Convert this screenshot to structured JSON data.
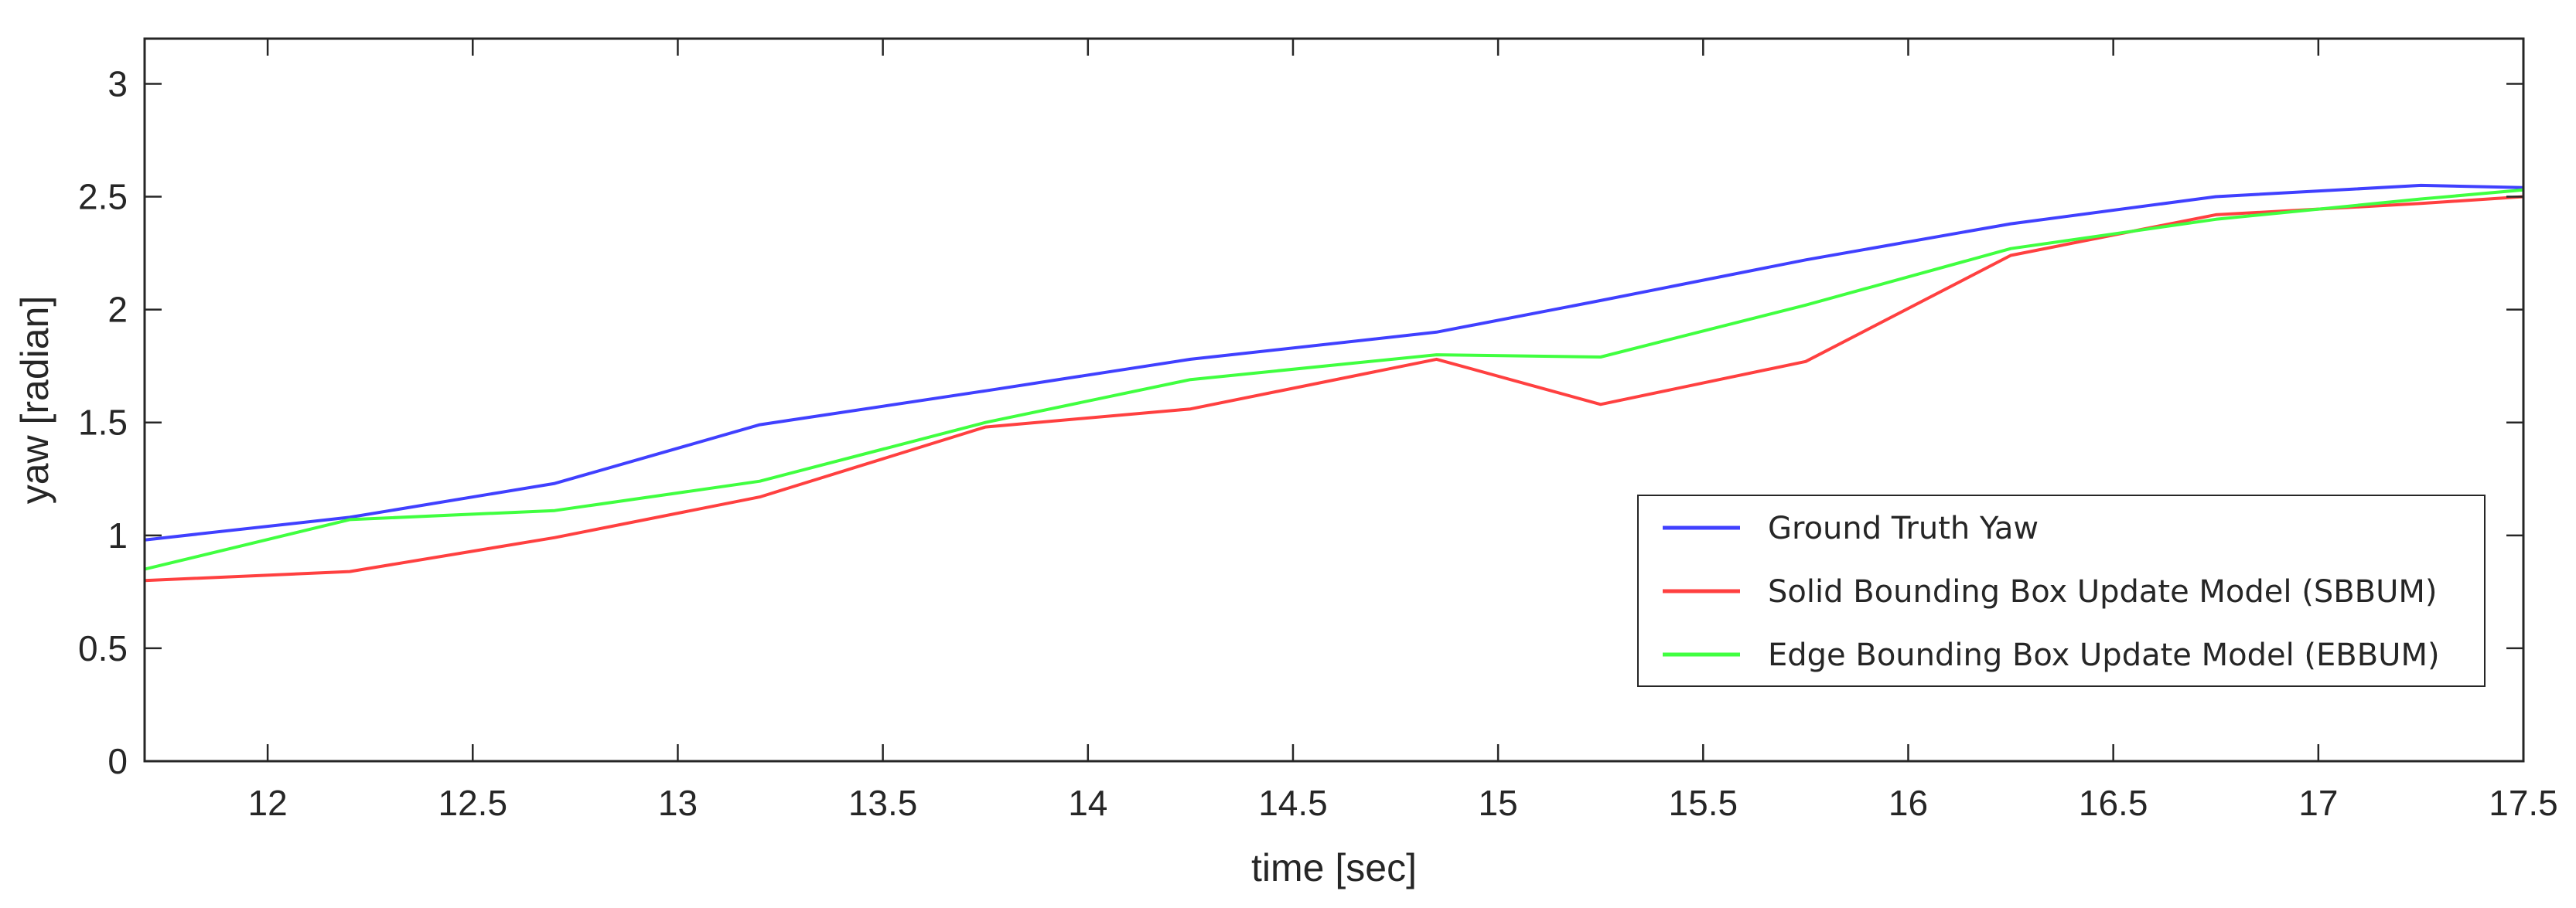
{
  "chart_data": {
    "type": "line",
    "xlabel": "time [sec]",
    "ylabel": "yaw [radian]",
    "xlim": [
      11.7,
      17.5
    ],
    "ylim": [
      0,
      3.2
    ],
    "xticks": [
      12,
      12.5,
      13,
      13.5,
      14,
      14.5,
      15,
      15.5,
      16,
      16.5,
      17,
      17.5
    ],
    "xtick_labels": [
      "12",
      "12.5",
      "13",
      "13.5",
      "14",
      "14.5",
      "15",
      "15.5",
      "16",
      "16.5",
      "17",
      "17.5"
    ],
    "yticks": [
      0,
      0.5,
      1,
      1.5,
      2,
      2.5,
      3
    ],
    "ytick_labels": [
      "0",
      "0.5",
      "1",
      "1.5",
      "2",
      "2.5",
      "3"
    ],
    "grid": false,
    "legend_position": "bottom-right",
    "series": [
      {
        "name": "Ground Truth Yaw",
        "color": "#4040ff",
        "x": [
          11.7,
          12.2,
          12.7,
          13.2,
          13.75,
          14.25,
          14.85,
          15.25,
          15.75,
          16.25,
          16.75,
          17.25,
          17.5
        ],
        "y": [
          0.98,
          1.08,
          1.23,
          1.49,
          1.64,
          1.78,
          1.9,
          2.04,
          2.22,
          2.38,
          2.5,
          2.55,
          2.54
        ]
      },
      {
        "name": "Solid Bounding Box Update Model (SBBUM)",
        "color": "#ff4040",
        "x": [
          11.7,
          12.2,
          12.7,
          13.2,
          13.75,
          14.25,
          14.85,
          15.25,
          15.75,
          16.25,
          16.75,
          17.25,
          17.5
        ],
        "y": [
          0.8,
          0.84,
          0.99,
          1.17,
          1.48,
          1.56,
          1.78,
          1.58,
          1.77,
          2.24,
          2.42,
          2.47,
          2.5
        ]
      },
      {
        "name": "Edge Bounding Box Update Model (EBBUM)",
        "color": "#40ff40",
        "x": [
          11.7,
          12.2,
          12.7,
          13.2,
          13.75,
          14.25,
          14.85,
          15.25,
          15.75,
          16.25,
          16.75,
          17.25,
          17.5
        ],
        "y": [
          0.85,
          1.07,
          1.11,
          1.24,
          1.5,
          1.69,
          1.8,
          1.79,
          2.02,
          2.27,
          2.4,
          2.49,
          2.53
        ]
      }
    ]
  }
}
